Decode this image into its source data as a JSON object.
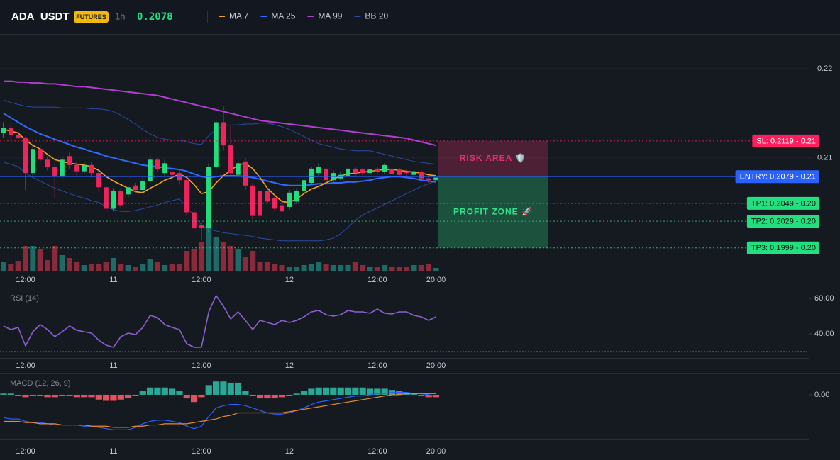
{
  "header": {
    "symbol": "ADA_USDT",
    "badge": "FUTURES",
    "interval": "1h",
    "price": 0.2078
  },
  "chart_data": [
    {
      "type": "candlestick",
      "categories": [
        null,
        null,
        null,
        "12:00",
        null,
        null,
        null,
        null,
        null,
        null,
        null,
        null,
        null,
        null,
        null,
        "11",
        null,
        null,
        null,
        null,
        null,
        null,
        null,
        null,
        null,
        null,
        null,
        "12:00",
        null,
        null,
        null,
        null,
        null,
        null,
        null,
        null,
        null,
        null,
        null,
        "12",
        null,
        null,
        null,
        null,
        null,
        null,
        null,
        null,
        null,
        null,
        null,
        "12:00",
        null,
        null,
        null,
        null,
        null,
        null,
        null,
        "20:00"
      ],
      "open": [
        0.2128,
        0.2134,
        0.2126,
        0.2122,
        0.2083,
        0.211,
        0.2098,
        0.209,
        0.208,
        0.2102,
        0.2092,
        0.2085,
        0.2092,
        0.2083,
        0.2067,
        0.2043,
        0.2063,
        0.2059,
        0.2069,
        0.2064,
        0.2074,
        0.2098,
        0.2083,
        0.2084,
        0.2083,
        0.2075,
        0.2039,
        0.2025,
        0.2021,
        0.209,
        0.214,
        0.2114,
        0.2081,
        0.2096,
        0.2069,
        0.2063,
        0.2063,
        0.2055,
        0.2047,
        0.2045,
        0.2051,
        0.2063,
        0.2072,
        0.2083,
        0.2088,
        0.2075,
        0.2077,
        0.208,
        0.2088,
        0.2087,
        0.2083,
        0.2088,
        0.2084,
        0.2088,
        0.2087,
        0.2085,
        0.2081,
        0.2084,
        0.2077,
        0.2075
      ],
      "high": [
        0.214,
        0.2138,
        0.213,
        0.2124,
        0.2114,
        0.2114,
        0.2102,
        0.2094,
        0.2102,
        0.2106,
        0.2096,
        0.2096,
        0.2095,
        0.2086,
        0.207,
        0.2066,
        0.2066,
        0.2069,
        0.2072,
        0.2077,
        0.2104,
        0.21,
        0.2098,
        0.2087,
        0.2086,
        0.2078,
        0.2042,
        0.2028,
        0.2094,
        0.2142,
        0.2158,
        0.2136,
        0.2098,
        0.21,
        0.2072,
        0.2066,
        0.2066,
        0.2059,
        0.205,
        0.2064,
        0.2066,
        0.2078,
        0.209,
        0.2094,
        0.209,
        0.2086,
        0.2085,
        0.2094,
        0.209,
        0.2089,
        0.2091,
        0.209,
        0.2094,
        0.209,
        0.2089,
        0.2088,
        0.2088,
        0.2086,
        0.208,
        0.208
      ],
      "low": [
        0.2122,
        0.212,
        0.2118,
        0.2064,
        0.208,
        0.2094,
        0.2086,
        0.2055,
        0.2077,
        0.2088,
        0.208,
        0.2082,
        0.2078,
        0.2062,
        0.204,
        0.204,
        0.2043,
        0.2055,
        0.206,
        0.2061,
        0.2072,
        0.2084,
        0.208,
        0.2078,
        0.207,
        0.2035,
        0.2017,
        0.2007,
        0.2017,
        0.2086,
        0.2108,
        0.2079,
        0.2075,
        0.2064,
        0.2031,
        0.2031,
        0.2048,
        0.204,
        0.2037,
        0.2042,
        0.2048,
        0.2061,
        0.207,
        0.208,
        0.2072,
        0.2073,
        0.2075,
        0.2078,
        0.208,
        0.2081,
        0.2081,
        0.2082,
        0.2082,
        0.208,
        0.2079,
        0.208,
        0.2079,
        0.2075,
        0.2072,
        0.2073
      ],
      "close": [
        0.2134,
        0.2126,
        0.2122,
        0.2083,
        0.211,
        0.2098,
        0.209,
        0.208,
        0.2098,
        0.2092,
        0.2085,
        0.2092,
        0.2083,
        0.2067,
        0.2043,
        0.2063,
        0.2047,
        0.2067,
        0.2064,
        0.2074,
        0.2098,
        0.2087,
        0.2094,
        0.2081,
        0.2075,
        0.2039,
        0.2021,
        0.2021,
        0.209,
        0.214,
        0.2114,
        0.2083,
        0.2094,
        0.2069,
        0.2035,
        0.2035,
        0.2051,
        0.2043,
        0.204,
        0.2061,
        0.2063,
        0.2075,
        0.2088,
        0.209,
        0.2075,
        0.2083,
        0.2081,
        0.2088,
        0.2083,
        0.2083,
        0.2087,
        0.2084,
        0.2092,
        0.2082,
        0.2081,
        0.2083,
        0.2085,
        0.2077,
        0.2075,
        0.2078
      ],
      "up_color": "#22dd7d",
      "down_color": "#f0245c",
      "volume": [
        12,
        10,
        14,
        35,
        35,
        30,
        15,
        35,
        22,
        18,
        12,
        8,
        10,
        10,
        12,
        18,
        10,
        8,
        6,
        10,
        16,
        12,
        8,
        10,
        10,
        28,
        30,
        40,
        60,
        48,
        40,
        35,
        30,
        20,
        28,
        12,
        12,
        10,
        8,
        6,
        6,
        8,
        10,
        12,
        10,
        8,
        8,
        8,
        12,
        8,
        6,
        6,
        8,
        6,
        6,
        6,
        8,
        8,
        10,
        4
      ],
      "volume_up_color": "#1d6b66",
      "volume_down_color": "#8a2b3c",
      "series": [
        {
          "name": "MA 7",
          "color": "#f5a11c",
          "values": [
            0.2132,
            0.213,
            0.2128,
            0.212,
            0.2114,
            0.211,
            0.2104,
            0.2098,
            0.2096,
            0.2094,
            0.2093,
            0.2092,
            0.209,
            0.2086,
            0.2079,
            0.2074,
            0.207,
            0.2066,
            0.2062,
            0.2061,
            0.2066,
            0.207,
            0.2075,
            0.2078,
            0.2082,
            0.2078,
            0.207,
            0.206,
            0.2062,
            0.2072,
            0.208,
            0.2086,
            0.2092,
            0.2094,
            0.2088,
            0.2078,
            0.2066,
            0.2058,
            0.2051,
            0.205,
            0.2054,
            0.206,
            0.2065,
            0.2068,
            0.2072,
            0.2076,
            0.208,
            0.2082,
            0.2083,
            0.2084,
            0.2085,
            0.2086,
            0.2087,
            0.2087,
            0.2086,
            0.2085,
            0.2084,
            0.2083,
            0.2081,
            0.208
          ]
        },
        {
          "name": "MA 25",
          "color": "#2f6bff",
          "values": [
            0.215,
            0.2145,
            0.214,
            0.2135,
            0.2131,
            0.2127,
            0.2124,
            0.2121,
            0.2118,
            0.2115,
            0.2112,
            0.211,
            0.2107,
            0.2105,
            0.2102,
            0.21,
            0.2098,
            0.2096,
            0.2094,
            0.2092,
            0.2091,
            0.209,
            0.2089,
            0.2088,
            0.2087,
            0.2085,
            0.2082,
            0.2079,
            0.2078,
            0.2079,
            0.208,
            0.208,
            0.208,
            0.2079,
            0.2078,
            0.2076,
            0.2074,
            0.2072,
            0.207,
            0.2069,
            0.2069,
            0.2069,
            0.207,
            0.2071,
            0.2071,
            0.2072,
            0.2072,
            0.2073,
            0.2073,
            0.2074,
            0.2075,
            0.2077,
            0.2078,
            0.2079,
            0.2079,
            0.2078,
            0.2077,
            0.2075,
            0.2074,
            0.2073
          ]
        },
        {
          "name": "MA 99",
          "color": "#b03fd0",
          "values": [
            0.2186,
            0.2186,
            0.2185,
            0.2185,
            0.2184,
            0.2184,
            0.2183,
            0.2183,
            0.2182,
            0.2181,
            0.218,
            0.218,
            0.2179,
            0.2178,
            0.2177,
            0.2176,
            0.2175,
            0.2174,
            0.2173,
            0.2172,
            0.2171,
            0.217,
            0.2168,
            0.2166,
            0.2164,
            0.2162,
            0.216,
            0.2158,
            0.2156,
            0.2154,
            0.2152,
            0.215,
            0.2148,
            0.2146,
            0.2144,
            0.2142,
            0.2141,
            0.214,
            0.2139,
            0.2138,
            0.2137,
            0.2136,
            0.2135,
            0.2134,
            0.2133,
            0.2132,
            0.2131,
            0.213,
            0.2129,
            0.2128,
            0.2127,
            0.2126,
            0.2125,
            0.2124,
            0.2123,
            0.2122,
            0.212,
            0.2118,
            0.2116,
            0.2114
          ]
        }
      ],
      "bands": [
        {
          "name": "BB 20",
          "color": "#2b4aa0",
          "upper": [
            0.2165,
            0.2162,
            0.216,
            0.2158,
            0.2157,
            0.2157,
            0.2157,
            0.2157,
            0.2156,
            0.2156,
            0.2156,
            0.2156,
            0.2155,
            0.2155,
            0.2154,
            0.2152,
            0.2148,
            0.2143,
            0.2138,
            0.2132,
            0.2127,
            0.2123,
            0.2121,
            0.212,
            0.212,
            0.2118,
            0.2116,
            0.2115,
            0.2125,
            0.2132,
            0.2136,
            0.2137,
            0.2137,
            0.2138,
            0.2138,
            0.2139,
            0.2139,
            0.2137,
            0.2135,
            0.2132,
            0.2128,
            0.2124,
            0.212,
            0.2116,
            0.2114,
            0.2112,
            0.211,
            0.2109,
            0.2108,
            0.2108,
            0.2108,
            0.2106,
            0.2104,
            0.2102,
            0.21,
            0.2098,
            0.2096,
            0.2095,
            0.2094,
            0.2093
          ],
          "lower": [
            0.2095,
            0.2093,
            0.209,
            0.2083,
            0.2078,
            0.2074,
            0.207,
            0.2066,
            0.2063,
            0.206,
            0.2057,
            0.2055,
            0.2052,
            0.205,
            0.2045,
            0.2042,
            0.204,
            0.204,
            0.2041,
            0.2043,
            0.2045,
            0.2047,
            0.205,
            0.2052,
            0.2054,
            0.2045,
            0.2035,
            0.2025,
            0.202,
            0.2018,
            0.2016,
            0.2015,
            0.2014,
            0.2013,
            0.2012,
            0.201,
            0.2009,
            0.2008,
            0.2007,
            0.2007,
            0.2007,
            0.2007,
            0.2007,
            0.2007,
            0.2008,
            0.201,
            0.2015,
            0.2022,
            0.203,
            0.2036,
            0.204,
            0.2044,
            0.2048,
            0.2052,
            0.2056,
            0.206,
            0.2064,
            0.2068,
            0.2071,
            0.2074
          ]
        }
      ],
      "ylim": [
        0.1971,
        0.2239
      ],
      "yticks": [
        0.21,
        0.22
      ],
      "grid": true,
      "levels": [
        {
          "label": "SL: 0.2119 - 0.21",
          "value": 0.2119,
          "color": "#ff1f5e",
          "text_color": "#ffffff",
          "dash": true
        },
        {
          "label": "ENTRY: 0.2079 - 0.21",
          "value": 0.2079,
          "color": "#2962ff",
          "text_color": "#ffffff",
          "dash": false
        },
        {
          "label": "TP1: 0.2049 - 0.20",
          "value": 0.2049,
          "color": "#22e07f",
          "text_color": "#0b1a12",
          "dash": true
        },
        {
          "label": "TP2: 0.2029 - 0.20",
          "value": 0.2029,
          "color": "#22e07f",
          "text_color": "#0b1a12",
          "dash": true
        },
        {
          "label": "TP3: 0.1999 - 0.20",
          "value": 0.1999,
          "color": "#22e07f",
          "text_color": "#0b1a12",
          "dash": true
        }
      ],
      "zones": [
        {
          "label": "RISK AREA 🛡️",
          "color": "#e0336b"
        },
        {
          "label": "PROFIT ZONE 🚀",
          "color": "#2ee58a"
        }
      ]
    },
    {
      "type": "line",
      "title": "RSI (14)",
      "color": "#8d5fd3",
      "values": [
        44.4,
        42.4,
        43.6,
        33.2,
        41.2,
        45.2,
        42.4,
        38.4,
        41.2,
        44.4,
        42.0,
        41.2,
        40.4,
        36.4,
        33.6,
        32.4,
        38.4,
        40.4,
        39.6,
        43.6,
        50.4,
        49.2,
        45.2,
        43.6,
        42.4,
        34.4,
        32.4,
        32.4,
        52.4,
        61.6,
        55.6,
        48.4,
        52.4,
        47.6,
        42.4,
        47.6,
        46.4,
        45.2,
        47.6,
        46.4,
        47.6,
        49.6,
        52.4,
        53.2,
        50.8,
        50.0,
        50.8,
        53.2,
        52.4,
        52.4,
        51.6,
        54.0,
        51.6,
        51.2,
        52.4,
        52.4,
        50.4,
        49.6,
        47.6,
        49.6
      ],
      "ylim": [
        26.4,
        65.2
      ],
      "yticks": [
        {
          "value": 40,
          "label": "40.00"
        },
        {
          "value": 60,
          "label": "60.00"
        }
      ],
      "hlines": [
        30
      ]
    },
    {
      "type": "macd",
      "title": "MACD (12, 26, 9)",
      "histogram": [
        0.0001,
        0.0001,
        -0.0001,
        -0.0002,
        -0.0001,
        -0.0001,
        -0.0002,
        -0.0002,
        -0.0001,
        -0.0001,
        -0.0002,
        -0.0002,
        -0.0002,
        -0.0004,
        -0.0005,
        -0.0005,
        -0.0004,
        -0.0003,
        -0.0001,
        0.0003,
        0.0006,
        0.0006,
        0.0006,
        0.0005,
        0.0003,
        -0.0003,
        -0.0006,
        -0.0002,
        0.0008,
        0.0011,
        0.0011,
        0.001,
        0.001,
        0.0003,
        -0.0001,
        -0.0003,
        -0.0003,
        -0.0003,
        -0.0002,
        -0.0001,
        0.0001,
        0.0003,
        0.0005,
        0.0006,
        0.0006,
        0.0006,
        0.0006,
        0.0006,
        0.0006,
        0.0006,
        0.0005,
        0.0005,
        0.0005,
        0.0004,
        0.0003,
        0.0002,
        0.0001,
        -0.0001,
        -0.0002,
        -0.0002
      ],
      "hist_up_color": "#2aa795",
      "hist_down_color": "#e5525f",
      "lines": [
        {
          "color": "#2962ff",
          "values": [
            -0.0019,
            -0.002,
            -0.002,
            -0.0022,
            -0.0023,
            -0.0023,
            -0.0024,
            -0.0025,
            -0.0025,
            -0.0025,
            -0.0025,
            -0.0026,
            -0.0026,
            -0.0027,
            -0.0028,
            -0.0029,
            -0.0029,
            -0.0029,
            -0.0027,
            -0.0024,
            -0.0022,
            -0.0021,
            -0.0021,
            -0.0022,
            -0.0023,
            -0.0026,
            -0.0028,
            -0.0026,
            -0.0018,
            -0.0011,
            -0.0009,
            -0.0008,
            -0.0008,
            -0.0009,
            -0.0011,
            -0.0013,
            -0.0015,
            -0.0016,
            -0.0016,
            -0.0015,
            -0.0013,
            -0.0011,
            -0.0008,
            -0.0006,
            -0.0005,
            -0.0004,
            -0.0003,
            -0.0002,
            -0.0001,
            -0.0001,
            0,
            0.0001,
            0.0001,
            0.0002,
            0.0002,
            0.0002,
            0.0001,
            0.0001,
            0,
            -0.0001
          ]
        },
        {
          "color": "#e8892a",
          "values": [
            -0.0022,
            -0.0022,
            -0.0022,
            -0.0023,
            -0.0023,
            -0.0024,
            -0.0024,
            -0.0024,
            -0.0025,
            -0.0025,
            -0.0025,
            -0.0025,
            -0.0026,
            -0.0026,
            -0.0026,
            -0.0027,
            -0.0027,
            -0.0027,
            -0.0026,
            -0.0026,
            -0.0025,
            -0.0025,
            -0.0024,
            -0.0024,
            -0.0024,
            -0.0024,
            -0.0023,
            -0.0022,
            -0.0021,
            -0.002,
            -0.0018,
            -0.0017,
            -0.0015,
            -0.0015,
            -0.0015,
            -0.0015,
            -0.0015,
            -0.0015,
            -0.0015,
            -0.0014,
            -0.0013,
            -0.0012,
            -0.0011,
            -0.001,
            -0.0009,
            -0.0008,
            -0.0007,
            -0.0006,
            -0.0005,
            -0.0004,
            -0.0003,
            -0.0002,
            -0.0001,
            0,
            0,
            0.0001,
            0.0001,
            0.0001,
            0.0001,
            0.0001
          ]
        }
      ],
      "ylim": [
        -0.0037,
        0.0017
      ],
      "yticks": [
        {
          "value": 0,
          "label": "0.00"
        }
      ]
    }
  ]
}
